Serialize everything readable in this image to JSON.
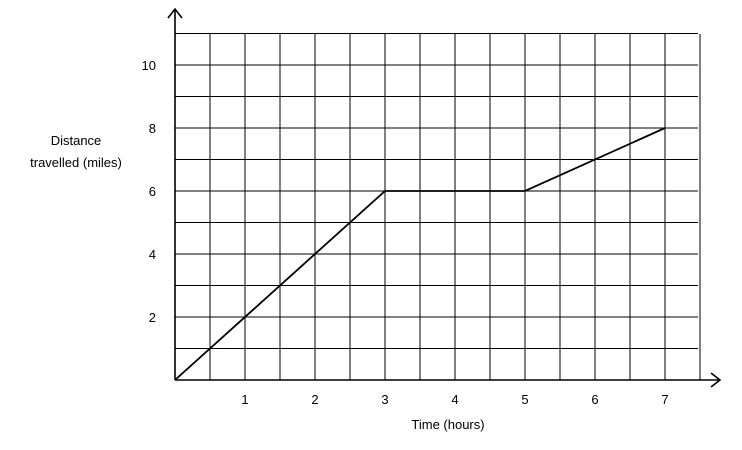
{
  "chart_data": {
    "type": "line",
    "title": "",
    "xlabel": "Time (hours)",
    "ylabel": [
      "Distance",
      "travelled (miles)"
    ],
    "xlim": [
      0,
      7.5
    ],
    "ylim": [
      0,
      11
    ],
    "x_ticks": [
      1,
      2,
      3,
      4,
      5,
      6,
      7
    ],
    "y_ticks": [
      2,
      4,
      6,
      8,
      10
    ],
    "grid": true,
    "grid_step_x": 0.5,
    "grid_step_y": 1,
    "series": [
      {
        "x": [
          0,
          3,
          5,
          7
        ],
        "y": [
          0,
          6,
          6,
          8
        ]
      }
    ],
    "colors": {
      "line": "#000000",
      "grid": "#000000",
      "axis": "#000000"
    }
  }
}
